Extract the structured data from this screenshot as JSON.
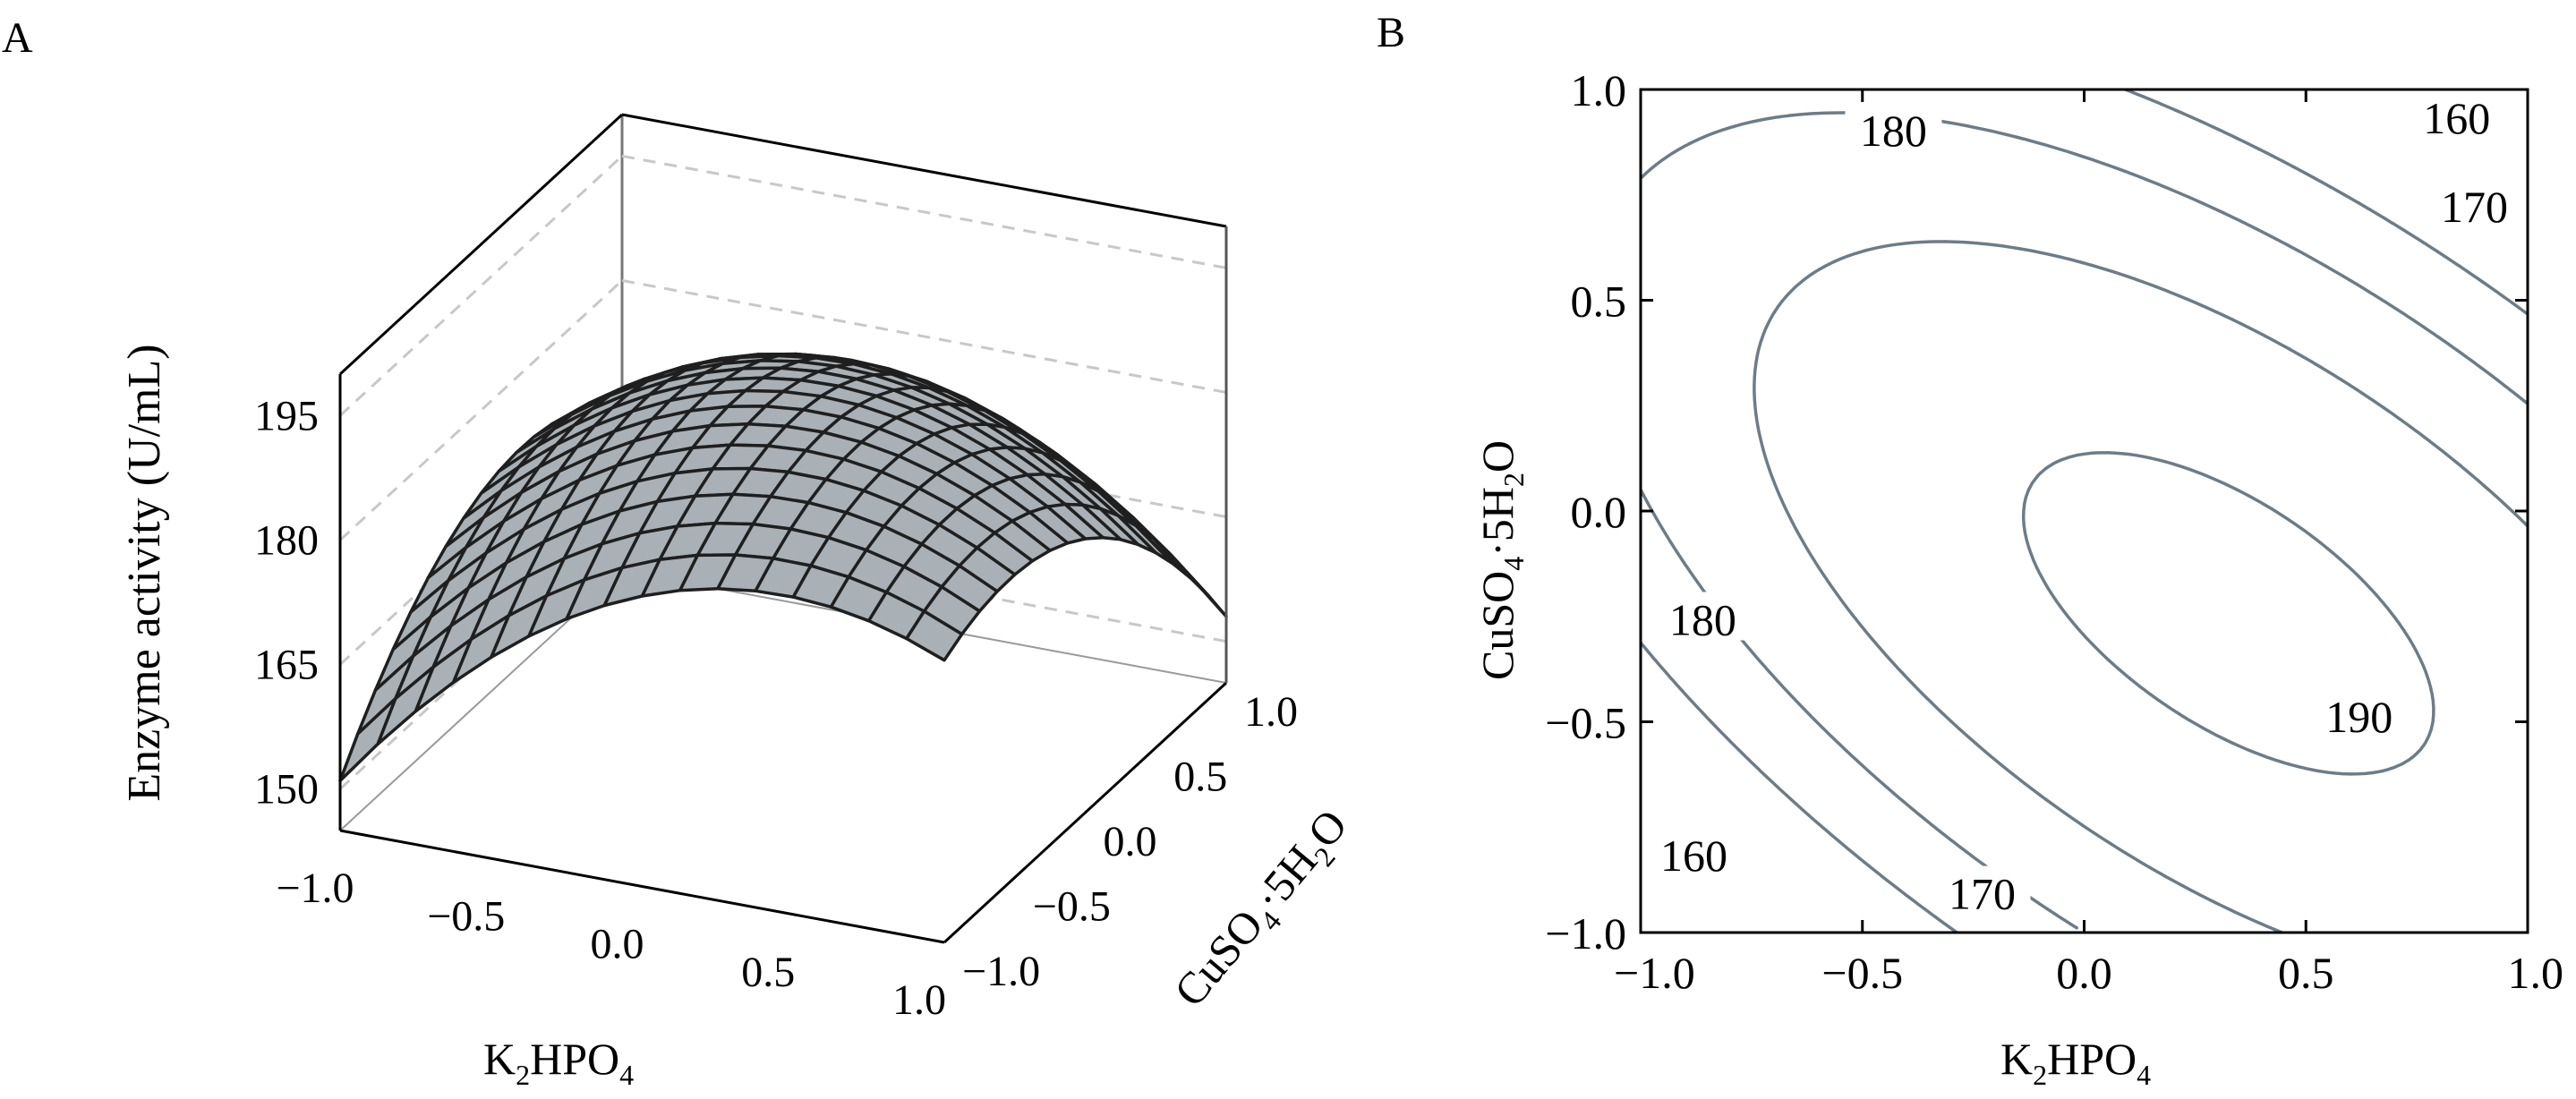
{
  "colors": {
    "surface_fill": "#a9b1b6",
    "mesh_line": "#1f1f1f",
    "contour_line": "#6d7c87",
    "axis": "#000000",
    "grid_dash": "#c8c8c8"
  },
  "panels": {
    "a_label": "A",
    "b_label": "B"
  },
  "chart_data": [
    {
      "type": "surface",
      "panel": "A",
      "zlabel": "Enzyme activity (U/mL)",
      "xlabel": {
        "main": "K",
        "sub1": "2",
        "mid": "HPO",
        "sub2": "4"
      },
      "ylabel": {
        "main": "CuSO",
        "sub1": "4",
        "mid": "·5H",
        "sub2": "2",
        "end": "O"
      },
      "xlim": [
        -1.0,
        1.0
      ],
      "ylim": [
        -1.0,
        1.0
      ],
      "zlim": [
        145,
        200
      ],
      "xticks": [
        "−1.0",
        "−0.5",
        "0.0",
        "0.5",
        "1.0"
      ],
      "yticks": [
        "−1.0",
        "−0.5",
        "0.0",
        "0.5",
        "1.0"
      ],
      "zticks": [
        "150",
        "165",
        "180",
        "195"
      ],
      "surface_samples": [
        {
          "x": -1.0,
          "y": -1.0,
          "z": 148
        },
        {
          "x": 0.0,
          "y": 0.0,
          "z": 189
        },
        {
          "x": 0.5,
          "y": -0.5,
          "z": 191
        },
        {
          "x": 1.0,
          "y": 1.0,
          "z": 166
        },
        {
          "x": -1.0,
          "y": 1.0,
          "z": 179
        },
        {
          "x": 1.0,
          "y": -1.0,
          "z": 181
        }
      ]
    },
    {
      "type": "contour",
      "panel": "B",
      "xlabel": {
        "main": "K",
        "sub1": "2",
        "mid": "HPO",
        "sub2": "4"
      },
      "ylabel": {
        "main": "CuSO",
        "sub1": "4",
        "mid": "·5H",
        "sub2": "2",
        "end": "O"
      },
      "xlim": [
        -1.0,
        1.0
      ],
      "ylim": [
        -1.0,
        1.0
      ],
      "xticks": [
        "−1.0",
        "−0.5",
        "0.0",
        "0.5",
        "1.0"
      ],
      "yticks": [
        "−1.0",
        "−0.5",
        "0.0",
        "0.5",
        "1.0"
      ],
      "levels": [
        160,
        170,
        180,
        190
      ],
      "level_labels": [
        {
          "text": "160",
          "x": 0.84,
          "y": 0.93
        },
        {
          "text": "170",
          "x": 0.88,
          "y": 0.72
        },
        {
          "text": "180",
          "x": -0.43,
          "y": 0.9
        },
        {
          "text": "180",
          "x": -0.86,
          "y": -0.26
        },
        {
          "text": "190",
          "x": 0.62,
          "y": -0.49
        },
        {
          "text": "160",
          "x": -0.88,
          "y": -0.82
        },
        {
          "text": "170",
          "x": -0.23,
          "y": -0.91
        }
      ]
    }
  ]
}
